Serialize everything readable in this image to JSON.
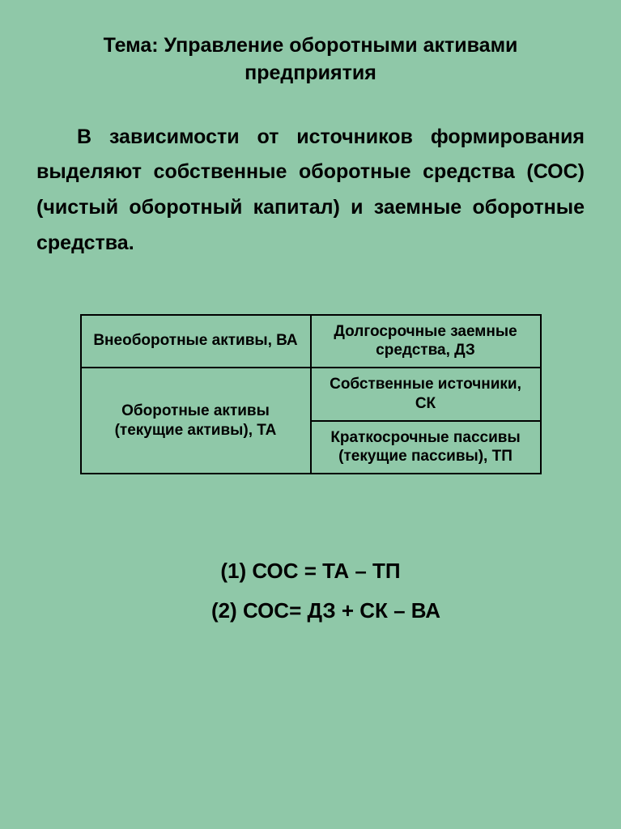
{
  "colors": {
    "background": "#8fc8a8",
    "text": "#000000",
    "border": "#000000"
  },
  "typography": {
    "font_family": "Arial, sans-serif",
    "title_fontsize": 25,
    "paragraph_fontsize": 25,
    "table_fontsize": 19,
    "formula_fontsize": 26,
    "font_weight": "bold"
  },
  "title": "Тема: Управление оборотными активами предприятия",
  "paragraph": "В зависимости от источников формирования выделяют собственные оборотные средства (СОС) (чистый оборотный капитал) и заемные оборотные средства.",
  "table": {
    "type": "table",
    "border_width": 2,
    "cells": {
      "left_top": "Внеоборотные активы, ВА",
      "left_bottom": "Оборотные активы (текущие активы), ТА",
      "right_top": "Долгосрочные заемные средства, ДЗ",
      "right_mid": "Собственные источники, СК",
      "right_bottom": "Краткосрочные пассивы (текущие пассивы), ТП"
    }
  },
  "formulas": {
    "f1": "(1) СОС = ТА – ТП",
    "f2": "(2) СОС= ДЗ + СК – ВА"
  }
}
